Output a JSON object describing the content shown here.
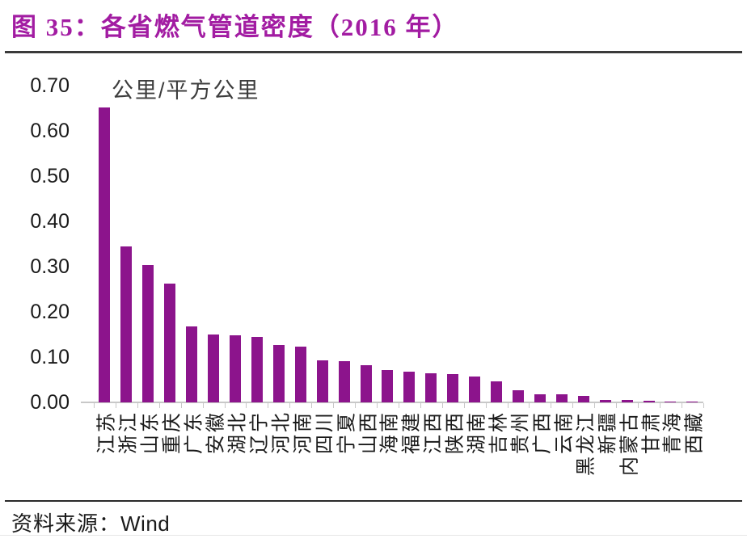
{
  "figure": {
    "title": "图 35：各省燃气管道密度（2016 年）",
    "source_prefix": "资料来源：",
    "source_name": "Wind"
  },
  "chart_data": {
    "type": "bar",
    "title": "各省燃气管道密度（2016 年）",
    "ylabel": "公里/平方公里",
    "categories": [
      "江苏",
      "浙江",
      "山东",
      "重庆",
      "广东",
      "安徽",
      "湖北",
      "辽宁",
      "河北",
      "河南",
      "四川",
      "宁夏",
      "山西",
      "海南",
      "福建",
      "江西",
      "陕西",
      "湖南",
      "吉林",
      "贵州",
      "广西",
      "云南",
      "黑龙江",
      "新疆",
      "内蒙古",
      "甘肃",
      "青海",
      "西藏"
    ],
    "values": [
      0.652,
      0.345,
      0.304,
      0.263,
      0.168,
      0.15,
      0.148,
      0.145,
      0.126,
      0.124,
      0.092,
      0.091,
      0.083,
      0.071,
      0.068,
      0.065,
      0.063,
      0.057,
      0.047,
      0.027,
      0.017,
      0.017,
      0.014,
      0.005,
      0.005,
      0.004,
      0.002,
      0.001
    ],
    "ylim": [
      0,
      0.7
    ],
    "yticks": [
      "0.00",
      "0.10",
      "0.20",
      "0.30",
      "0.40",
      "0.50",
      "0.60",
      "0.70"
    ],
    "grid": false,
    "legend": null,
    "bar_color": "#8C148C",
    "accent_color": "#A21CA2"
  }
}
